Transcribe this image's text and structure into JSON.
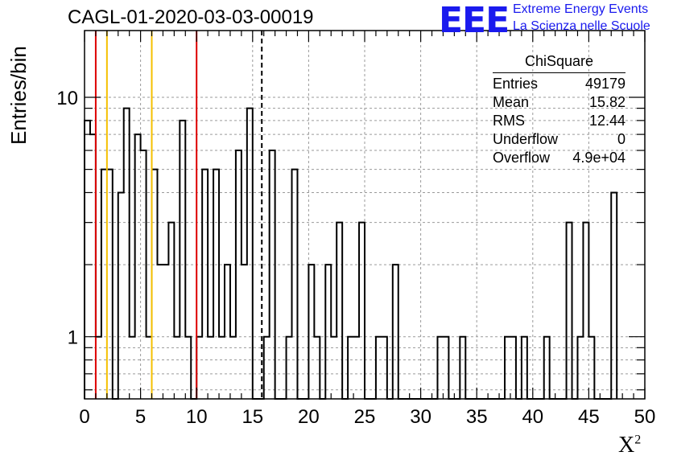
{
  "header": {
    "title": "CAGL-01-2020-03-03-00019"
  },
  "logo": {
    "mark": "EEE",
    "line1": "Extreme Energy Events",
    "line2": "La Scienza nelle Scuole",
    "color": "#1a1aee"
  },
  "stats": {
    "title": "ChiSquare",
    "rows": [
      {
        "label": "Entries",
        "value": "49179"
      },
      {
        "label": "Mean",
        "value": "15.82"
      },
      {
        "label": "RMS",
        "value": "12.44"
      },
      {
        "label": "Underflow",
        "value": "0"
      },
      {
        "label": "Overflow",
        "value": "4.9e+04"
      }
    ]
  },
  "chart_data": {
    "type": "bar",
    "histogram": true,
    "xlabel": "X",
    "xlabel_sup": "2",
    "ylabel": "Entries/bin",
    "xlim": [
      0,
      50
    ],
    "ylim": [
      0.55,
      19
    ],
    "yscale": "log",
    "grid": true,
    "bin_width": 0.5,
    "xticks": [
      0,
      5,
      10,
      15,
      20,
      25,
      30,
      35,
      40,
      45,
      50
    ],
    "yticks": [
      {
        "value": 1,
        "label": "1"
      },
      {
        "value": 10,
        "label": "10"
      }
    ],
    "values": [
      8,
      7,
      1,
      5,
      5,
      0,
      4,
      9,
      1,
      7,
      6,
      1,
      5,
      2,
      2,
      3,
      1,
      8,
      1,
      0,
      1,
      5,
      1,
      5,
      1,
      2,
      1,
      6,
      2,
      9,
      0,
      0,
      1,
      6,
      0,
      0,
      1,
      5,
      0,
      0,
      2,
      1,
      0,
      2,
      1,
      3,
      0,
      1,
      1,
      3,
      0,
      0,
      1,
      1,
      0,
      2,
      0,
      0,
      0,
      0,
      0,
      0,
      0,
      1,
      1,
      0,
      0,
      1,
      0,
      0,
      0,
      0,
      0,
      0,
      0,
      1,
      1,
      0,
      1,
      0,
      0,
      0,
      1,
      0,
      0,
      0,
      3,
      0,
      1,
      3,
      1,
      0,
      0,
      0,
      4
    ],
    "vertical_lines": [
      {
        "x": 1.0,
        "color": "#dd0000",
        "style": "solid"
      },
      {
        "x": 2.0,
        "color": "#f5c000",
        "style": "solid"
      },
      {
        "x": 6.0,
        "color": "#f5c000",
        "style": "solid"
      },
      {
        "x": 10.0,
        "color": "#dd0000",
        "style": "solid"
      },
      {
        "x": 15.82,
        "color": "#000000",
        "style": "dashed"
      }
    ]
  }
}
